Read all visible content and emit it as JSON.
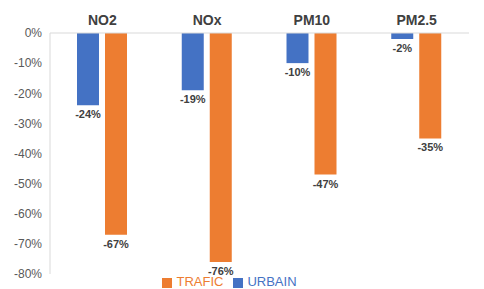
{
  "chart_data": {
    "type": "bar",
    "categories": [
      "NO2",
      "NOx",
      "PM10",
      "PM2.5"
    ],
    "series": [
      {
        "name": "URBAIN",
        "color": "#4472c4",
        "values": [
          -24,
          -19,
          -10,
          -2
        ],
        "value_labels": [
          "-24%",
          "-19%",
          "-10%",
          "-2%"
        ]
      },
      {
        "name": "TRAFIC",
        "color": "#ed7d31",
        "values": [
          -67,
          -76,
          -47,
          -35
        ],
        "value_labels": [
          "-67%",
          "-76%",
          "-47%",
          "-35%"
        ]
      }
    ],
    "ylim": [
      -80,
      0
    ],
    "yticks": [
      {
        "value": 0,
        "label": "0%"
      },
      {
        "value": -10,
        "label": "-10%"
      },
      {
        "value": -20,
        "label": "-20%"
      },
      {
        "value": -30,
        "label": "-30%"
      },
      {
        "value": -40,
        "label": "-40%"
      },
      {
        "value": -50,
        "label": "-50%"
      },
      {
        "value": -60,
        "label": "-60%"
      },
      {
        "value": -70,
        "label": "-70%"
      },
      {
        "value": -80,
        "label": "-80%"
      }
    ],
    "grid": false,
    "data_labels": true,
    "legend": "bottom"
  }
}
